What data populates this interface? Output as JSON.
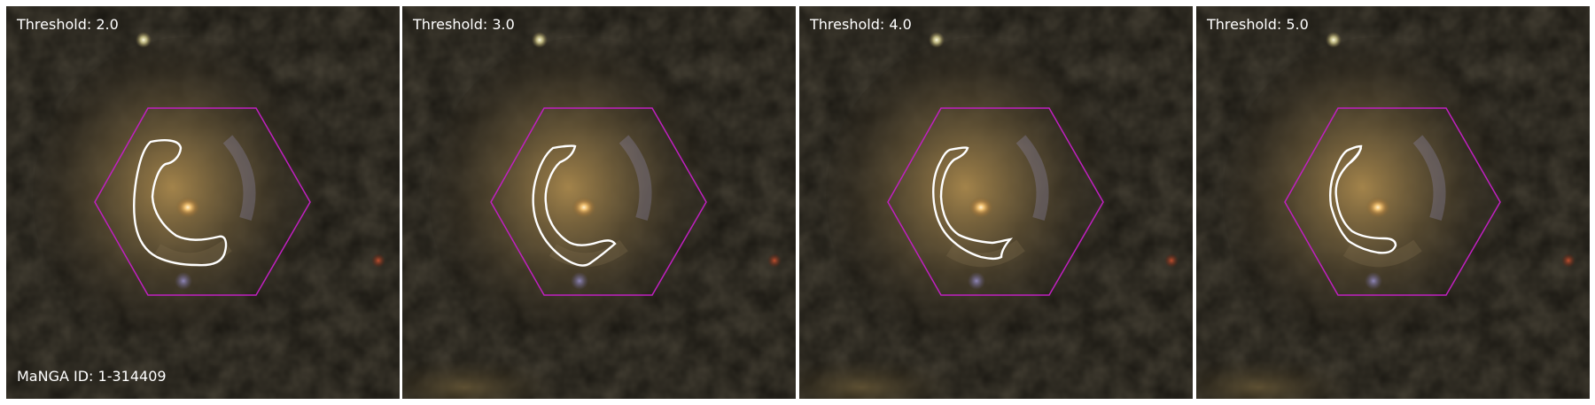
{
  "colors": {
    "hexagon": "#c020c0",
    "contour": "#ffffff",
    "label": "#ffffff"
  },
  "figure": {
    "galaxy_id_label": "MaNGA ID: 1-314409"
  },
  "panels": [
    {
      "label": "Threshold: 2.0"
    },
    {
      "label": "Threshold: 3.0"
    },
    {
      "label": "Threshold: 4.0"
    },
    {
      "label": "Threshold: 5.0"
    }
  ]
}
